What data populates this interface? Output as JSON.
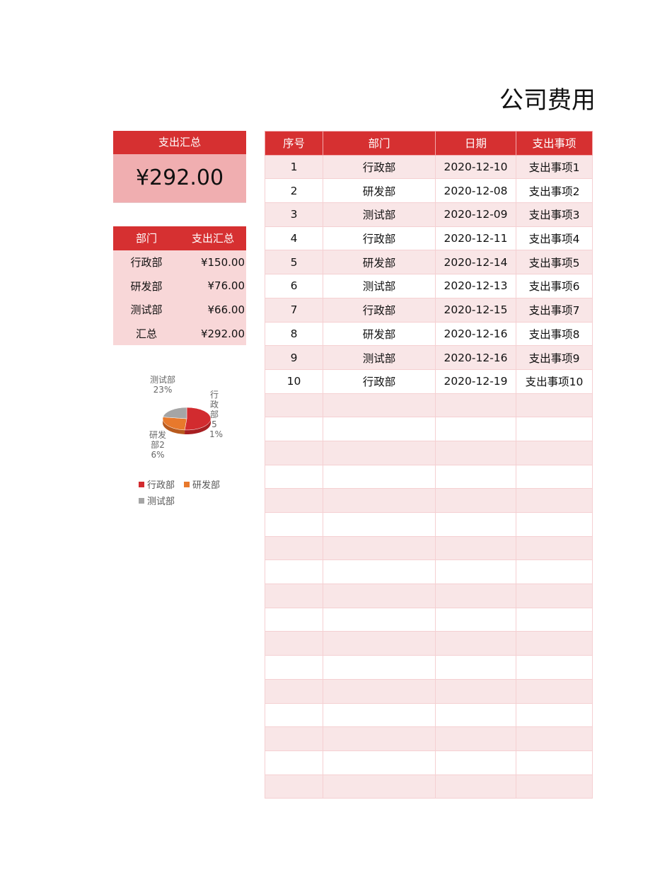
{
  "title": "公司费用",
  "summary": {
    "header": "支出汇总",
    "total": "¥292.00"
  },
  "dept_table": {
    "headers": [
      "部门",
      "支出汇总"
    ],
    "rows": [
      [
        "行政部",
        "¥150.00"
      ],
      [
        "研发部",
        "¥76.00"
      ],
      [
        "测试部",
        "¥66.00"
      ],
      [
        "汇总",
        "¥292.00"
      ]
    ]
  },
  "main_table": {
    "headers": [
      "序号",
      "部门",
      "日期",
      "支出事项"
    ],
    "rows": [
      [
        "1",
        "行政部",
        "2020-12-10",
        "支出事项1"
      ],
      [
        "2",
        "研发部",
        "2020-12-08",
        "支出事项2"
      ],
      [
        "3",
        "测试部",
        "2020-12-09",
        "支出事项3"
      ],
      [
        "4",
        "行政部",
        "2020-12-11",
        "支出事项4"
      ],
      [
        "5",
        "研发部",
        "2020-12-14",
        "支出事项5"
      ],
      [
        "6",
        "测试部",
        "2020-12-13",
        "支出事项6"
      ],
      [
        "7",
        "行政部",
        "2020-12-15",
        "支出事项7"
      ],
      [
        "8",
        "研发部",
        "2020-12-16",
        "支出事项8"
      ],
      [
        "9",
        "测试部",
        "2020-12-16",
        "支出事项9"
      ],
      [
        "10",
        "行政部",
        "2020-12-19",
        "支出事项10"
      ]
    ],
    "empty_rows": 17
  },
  "chart_data": {
    "type": "pie",
    "categories": [
      "行政部",
      "研发部",
      "测试部"
    ],
    "values": [
      150,
      76,
      66
    ],
    "labels": [
      "51%",
      "26%",
      "23%"
    ],
    "colors": [
      "#d22b2f",
      "#e8792c",
      "#a5a5a5"
    ],
    "legend": "bottom",
    "style": "3d"
  }
}
